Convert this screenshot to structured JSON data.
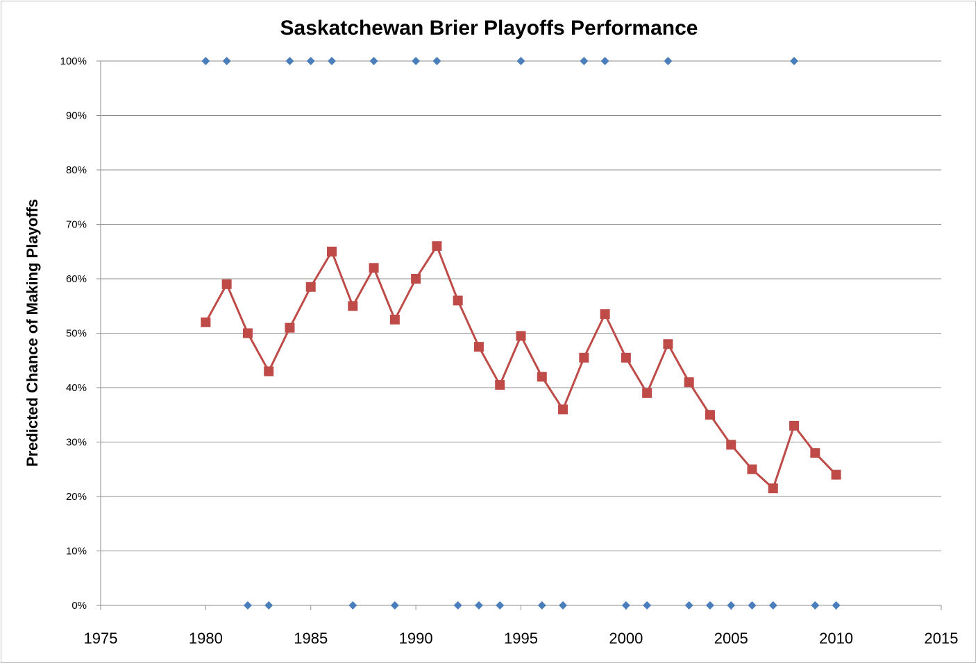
{
  "chart_data": {
    "type": "line",
    "title": "Saskatchewan Brier Playoffs Performance",
    "xlabel": "",
    "ylabel": "Predicted Chance of Making Playoffs",
    "xlim": [
      1975,
      2015
    ],
    "ylim": [
      0,
      1
    ],
    "x_ticks": [
      1975,
      1980,
      1985,
      1990,
      1995,
      2000,
      2005,
      2010,
      2015
    ],
    "y_ticks": [
      "0%",
      "10%",
      "20%",
      "30%",
      "40%",
      "50%",
      "60%",
      "70%",
      "80%",
      "90%",
      "100%"
    ],
    "grid": "horizontal",
    "series": [
      {
        "marker": "diamond",
        "line": false,
        "color": "#4a7ebb",
        "x": [
          1980,
          1981,
          1982,
          1983,
          1984,
          1985,
          1986,
          1987,
          1988,
          1989,
          1990,
          1991,
          1992,
          1993,
          1994,
          1995,
          1996,
          1997,
          1998,
          1999,
          2000,
          2001,
          2002,
          2003,
          2004,
          2005,
          2006,
          2007,
          2008,
          2009,
          2010
        ],
        "values": [
          1,
          1,
          0,
          0,
          1,
          1,
          1,
          0,
          1,
          0,
          1,
          1,
          0,
          0,
          0,
          1,
          0,
          0,
          1,
          1,
          0,
          0,
          1,
          0,
          0,
          0,
          0,
          0,
          1,
          0,
          0
        ]
      },
      {
        "marker": "square",
        "line": true,
        "color": "#be4b48",
        "x": [
          1980,
          1981,
          1982,
          1983,
          1984,
          1985,
          1986,
          1987,
          1988,
          1989,
          1990,
          1991,
          1992,
          1993,
          1994,
          1995,
          1996,
          1997,
          1998,
          1999,
          2000,
          2001,
          2002,
          2003,
          2004,
          2005,
          2006,
          2007,
          2008,
          2009,
          2010
        ],
        "values": [
          0.52,
          0.59,
          0.5,
          0.43,
          0.51,
          0.585,
          0.65,
          0.55,
          0.62,
          0.525,
          0.6,
          0.66,
          0.56,
          0.475,
          0.405,
          0.495,
          0.42,
          0.36,
          0.455,
          0.535,
          0.455,
          0.39,
          0.48,
          0.41,
          0.35,
          0.295,
          0.25,
          0.215,
          0.33,
          0.28,
          0.24
        ]
      }
    ]
  }
}
